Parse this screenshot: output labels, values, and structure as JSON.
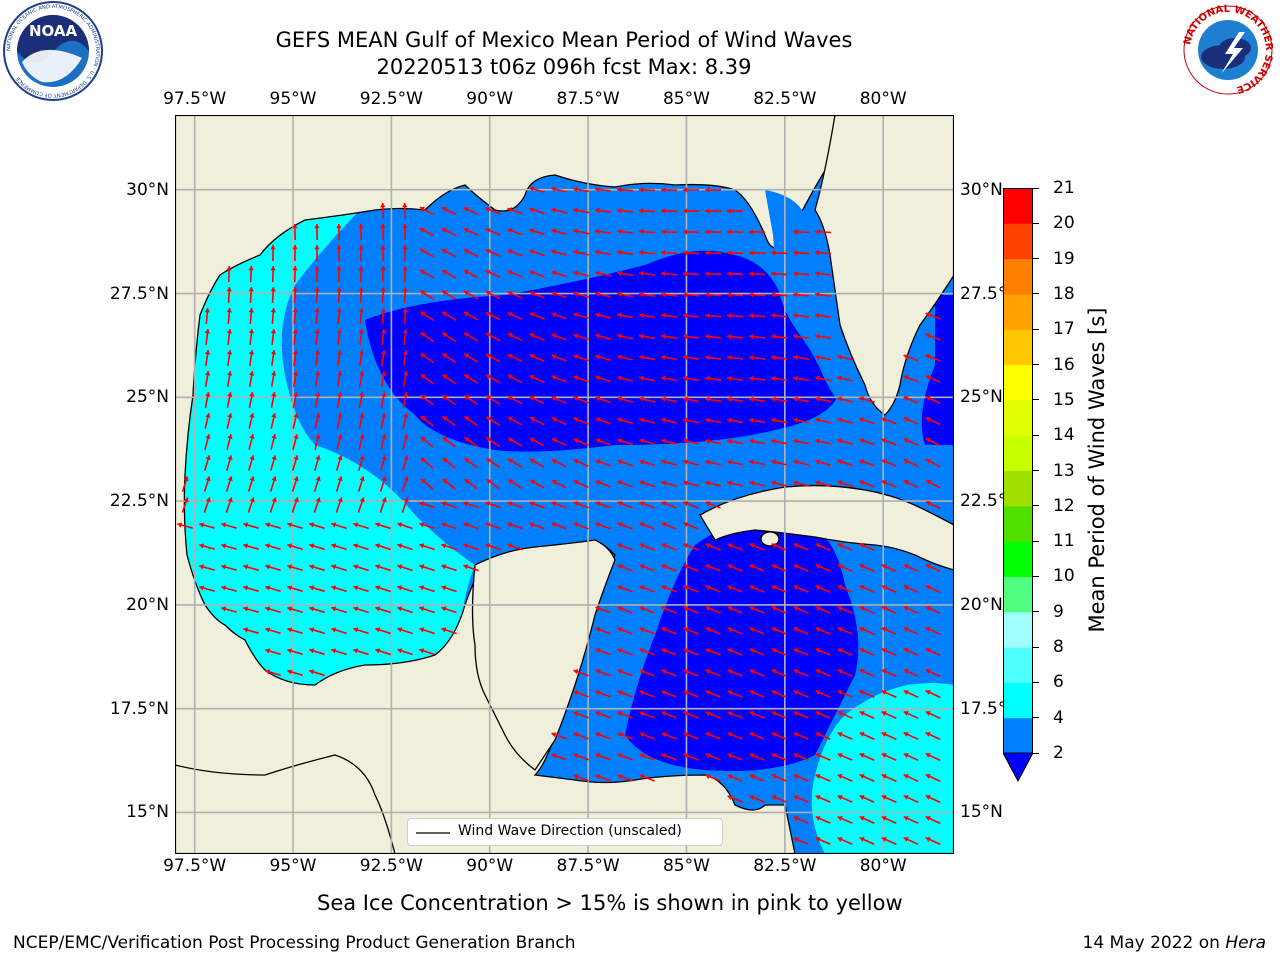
{
  "header": {
    "title_line1": "GEFS MEAN Gulf of Mexico Mean Period of Wind Waves",
    "title_line2": "20220513 t06z 096h fcst   Max: 8.39"
  },
  "logos": {
    "left": {
      "text": "NOAA",
      "ring_text": "NATIONAL OCEANIC AND ATMOSPHERIC ADMINISTRATION · U.S. DEPARTMENT OF COMMERCE"
    },
    "right": {
      "ring_text": "NATIONAL WEATHER SERVICE"
    }
  },
  "map": {
    "lon_ticks": [
      "97.5°W",
      "95°W",
      "92.5°W",
      "90°W",
      "87.5°W",
      "85°W",
      "82.5°W",
      "80°W"
    ],
    "lat_ticks": [
      "30°N",
      "27.5°N",
      "25°N",
      "22.5°N",
      "20°N",
      "17.5°N",
      "15°N"
    ],
    "lon_values": [
      -97.5,
      -95,
      -92.5,
      -90,
      -87.5,
      -85,
      -82.5,
      -80
    ],
    "lat_values": [
      30,
      27.5,
      25,
      22.5,
      20,
      17.5,
      15
    ],
    "extent": {
      "lon": [
        -98,
        -78.2
      ],
      "lat": [
        14,
        31.8
      ]
    },
    "land_color": "#efefdb",
    "grid_color": "#b0b0b0",
    "arrow_color": "#ff0000"
  },
  "legend": {
    "label": "Wind Wave Direction (unscaled)"
  },
  "colorbar": {
    "label": "Mean Period of Wind Waves [s]",
    "levels": [
      "2",
      "4",
      "6",
      "8",
      "9",
      "10",
      "11",
      "12",
      "13",
      "14",
      "15",
      "16",
      "17",
      "18",
      "19",
      "20",
      "21"
    ],
    "colors": [
      "#0000ff",
      "#0080ff",
      "#00ffff",
      "#50ffff",
      "#a0ffff",
      "#50ff80",
      "#00ff00",
      "#50e000",
      "#a0e000",
      "#c8ff00",
      "#e0ff00",
      "#ffff00",
      "#ffc800",
      "#ffa000",
      "#ff8000",
      "#ff4000",
      "#ff0000"
    ],
    "underflow_color": "#0000ff"
  },
  "footer": {
    "note": "Sea Ice Concentration > 15% is shown in pink to yellow",
    "left": "NCEP/EMC/Verification Post Processing Product Generation Branch",
    "right_date": "14 May 2022 on",
    "right_host": "Hera"
  }
}
